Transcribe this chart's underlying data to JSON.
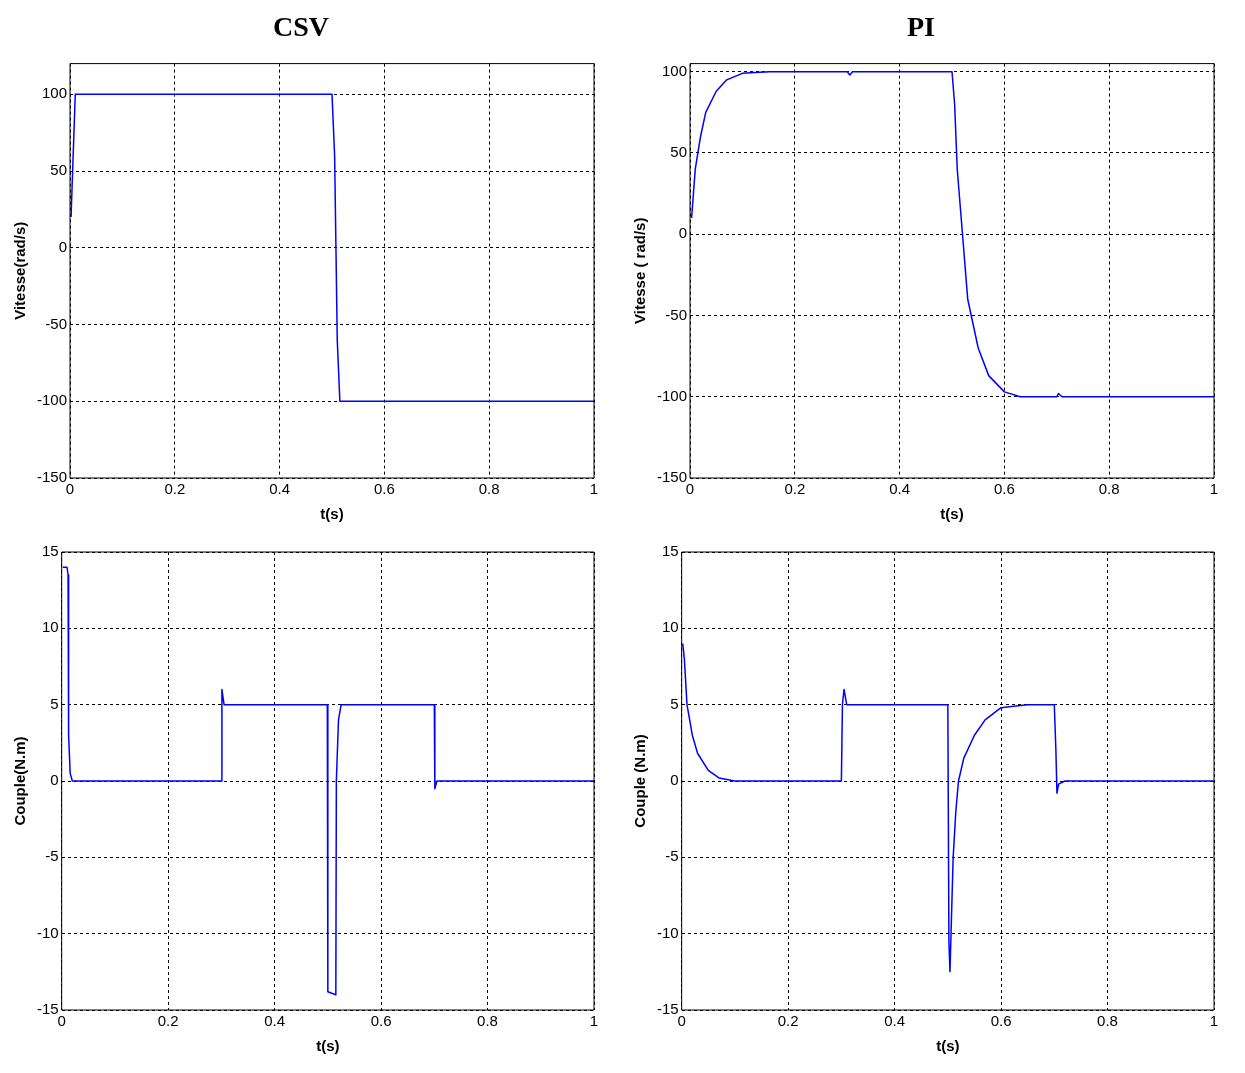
{
  "chart_data": [
    {
      "type": "line",
      "title": "CSV",
      "xlabel": "t(s)",
      "ylabel": "Vitesse(rad/s)",
      "xlim": [
        0,
        1
      ],
      "xticks": [
        0,
        0.2,
        0.4,
        0.6,
        0.8,
        1
      ],
      "ylim": [
        -150,
        120
      ],
      "yticks": [
        -150,
        -100,
        -50,
        0,
        50,
        100
      ],
      "grid": true,
      "marker": "none",
      "series": [
        {
          "color": "#0000ff",
          "x": [
            0.002,
            0.01,
            0.3,
            0.5,
            0.505,
            0.51,
            0.515,
            0.7,
            1
          ],
          "values": [
            20,
            100,
            100,
            100,
            60,
            -60,
            -100,
            -100,
            -100
          ]
        }
      ]
    },
    {
      "type": "line",
      "title": "PI",
      "xlabel": "t(s)",
      "ylabel": "Vitesse ( rad/s)",
      "xlim": [
        0,
        1
      ],
      "xticks": [
        0,
        0.2,
        0.4,
        0.6,
        0.8,
        1
      ],
      "ylim": [
        -150,
        105
      ],
      "yticks": [
        -150,
        -100,
        -50,
        0,
        50,
        100
      ],
      "grid": true,
      "marker": "none",
      "series": [
        {
          "color": "#0000ff",
          "x": [
            0.003,
            0.01,
            0.02,
            0.03,
            0.05,
            0.07,
            0.1,
            0.15,
            0.3,
            0.305,
            0.31,
            0.5,
            0.505,
            0.51,
            0.52,
            0.53,
            0.55,
            0.57,
            0.6,
            0.63,
            0.7,
            0.703,
            0.71,
            1
          ],
          "values": [
            10,
            40,
            60,
            75,
            88,
            95,
            99,
            100,
            100,
            98,
            100,
            100,
            80,
            40,
            0,
            -40,
            -70,
            -87,
            -97,
            -100,
            -100,
            -98,
            -100,
            -100
          ]
        }
      ]
    },
    {
      "type": "line",
      "xlabel": "t(s)",
      "ylabel": "Couple(N.m)",
      "xlim": [
        0,
        1
      ],
      "xticks": [
        0,
        0.2,
        0.4,
        0.6,
        0.8,
        1
      ],
      "ylim": [
        -15,
        15
      ],
      "yticks": [
        -15,
        -10,
        -5,
        0,
        5,
        10,
        15
      ],
      "grid": true,
      "marker": "none",
      "series": [
        {
          "color": "#0000ff",
          "x": [
            0.002,
            0.01,
            0.012,
            0.013,
            0.016,
            0.02,
            0.3,
            0.301,
            0.305,
            0.499,
            0.5,
            0.515,
            0.516,
            0.52,
            0.525,
            0.7,
            0.701,
            0.705,
            1
          ],
          "values": [
            14,
            14,
            13.5,
            3,
            0.5,
            0,
            0,
            6,
            5,
            5,
            -13.8,
            -14,
            0,
            4,
            5,
            5,
            -0.5,
            0,
            0
          ]
        }
      ]
    },
    {
      "type": "line",
      "xlabel": "t(s)",
      "ylabel": "Couple (N.m)",
      "xlim": [
        0,
        1
      ],
      "xticks": [
        0,
        0.2,
        0.4,
        0.6,
        0.8,
        1
      ],
      "ylim": [
        -15,
        15
      ],
      "yticks": [
        -15,
        -10,
        -5,
        0,
        5,
        10,
        15
      ],
      "grid": true,
      "marker": "none",
      "series": [
        {
          "color": "#0000ff",
          "x": [
            0.002,
            0.005,
            0.01,
            0.02,
            0.03,
            0.05,
            0.07,
            0.1,
            0.3,
            0.302,
            0.305,
            0.31,
            0.5,
            0.502,
            0.504,
            0.506,
            0.51,
            0.515,
            0.52,
            0.53,
            0.55,
            0.57,
            0.6,
            0.65,
            0.7,
            0.703,
            0.705,
            0.708,
            0.72,
            1
          ],
          "values": [
            9,
            8,
            5,
            3,
            1.8,
            0.7,
            0.2,
            0,
            0,
            5,
            6,
            5,
            5,
            -10.5,
            -12.5,
            -10,
            -5,
            -2,
            0,
            1.5,
            3,
            4,
            4.8,
            5,
            5,
            2,
            -0.8,
            -0.2,
            0,
            0
          ]
        }
      ]
    }
  ]
}
